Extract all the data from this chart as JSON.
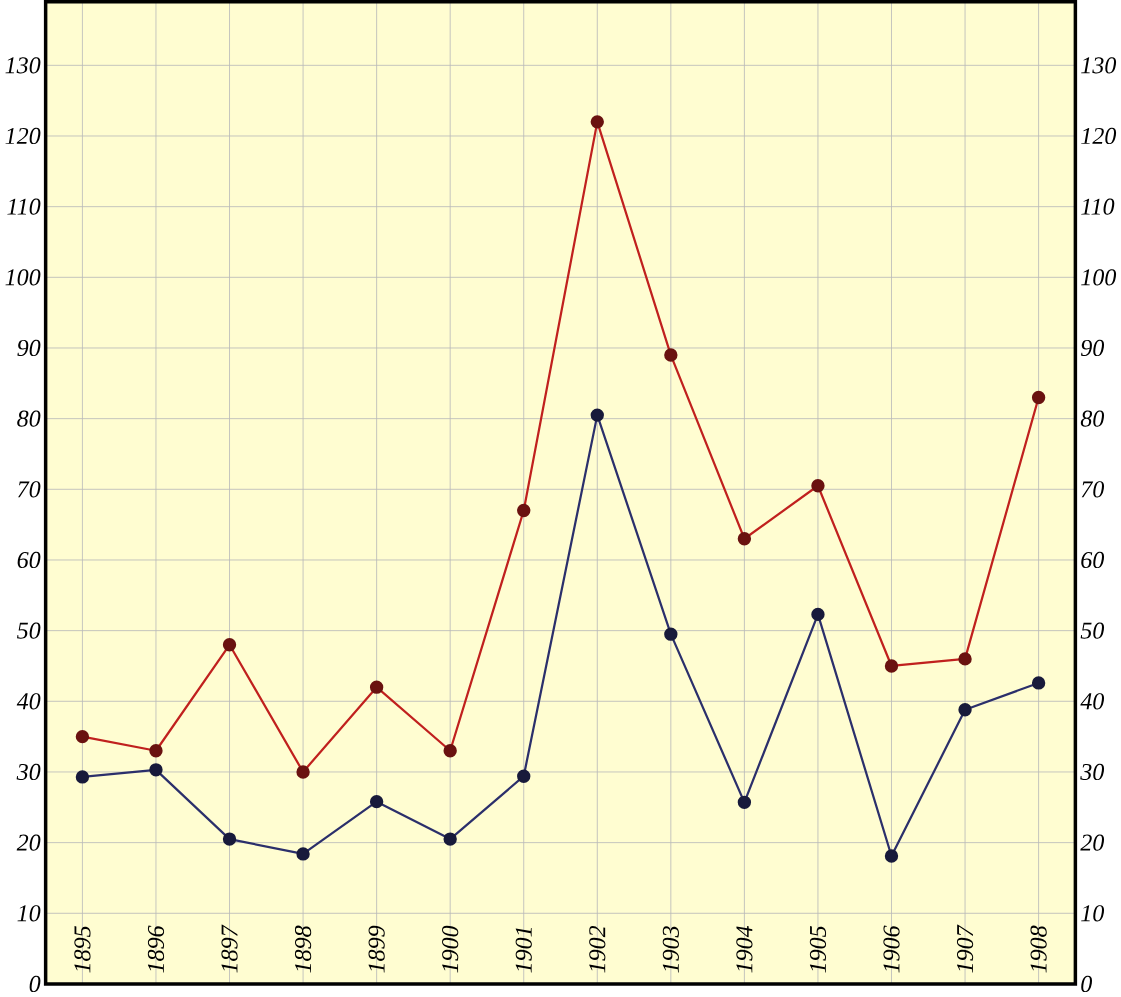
{
  "chart_data": {
    "type": "line",
    "categories": [
      "1895",
      "1896",
      "1897",
      "1898",
      "1899",
      "1900",
      "1901",
      "1902",
      "1903",
      "1904",
      "1905",
      "1906",
      "1907",
      "1908"
    ],
    "series": [
      {
        "color": "#c0201e",
        "values": [
          35,
          33,
          48,
          30,
          42,
          33,
          67,
          122,
          89,
          63,
          70.5,
          45,
          46,
          83
        ]
      },
      {
        "color": "#2b2f6b",
        "values": [
          29.3,
          30.3,
          20.5,
          18.4,
          25.8,
          20.5,
          29.4,
          80.5,
          49.5,
          25.7,
          52.3,
          18.1,
          38.8,
          42.6
        ]
      }
    ],
    "ylim": [
      0,
      139
    ],
    "yticks": [
      0,
      10,
      20,
      30,
      40,
      50,
      60,
      70,
      80,
      90,
      100,
      110,
      120,
      130
    ],
    "y2lim": [
      0,
      139
    ],
    "y2ticks": [
      0,
      10,
      20,
      30,
      40,
      50,
      60,
      70,
      80,
      90,
      100,
      110,
      120,
      130
    ],
    "grid": true,
    "marker": "circle",
    "line_style": "solid"
  }
}
